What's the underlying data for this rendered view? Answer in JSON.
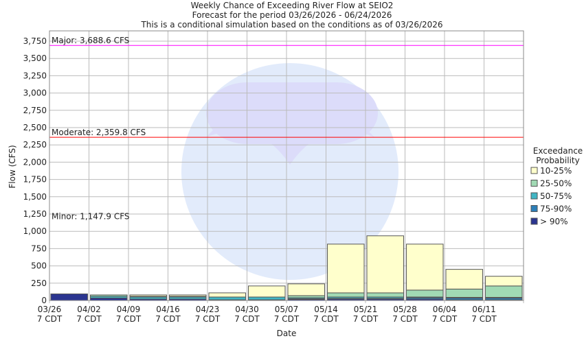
{
  "chart_data": {
    "type": "bar",
    "stacked": true,
    "title": "Weekly Chance of Exceeding River Flow at SEIO2",
    "subtitle": "Forecast for the period 03/26/2026 - 06/24/2026",
    "subtitle2": "This is a conditional simulation based on the conditions as of 03/26/2026",
    "xlabel": "Date",
    "ylabel": "Flow (CFS)",
    "ylim": [
      0,
      3900
    ],
    "yticks": [
      0,
      250,
      500,
      750,
      1000,
      1250,
      1500,
      1750,
      2000,
      2250,
      2500,
      2750,
      3000,
      3250,
      3500,
      3750
    ],
    "ytick_labels": [
      "0",
      "250",
      "500",
      "750",
      "1,000",
      "1,250",
      "1,500",
      "1,750",
      "2,000",
      "2,250",
      "2,500",
      "2,750",
      "3,000",
      "3,250",
      "3,500",
      "3,750"
    ],
    "categories": [
      "03/26",
      "04/02",
      "04/09",
      "04/16",
      "04/23",
      "04/30",
      "05/07",
      "05/14",
      "05/21",
      "05/28",
      "06/04",
      "06/11"
    ],
    "tick_sublabel": "7 CDT",
    "grid": true,
    "legend_title": "Exceedance Probability",
    "legend_position": "right",
    "series": [
      {
        "name": "> 90%",
        "color": "#2b3590",
        "values": [
          95,
          35,
          20,
          20,
          10,
          10,
          15,
          20,
          20,
          20,
          10,
          10
        ]
      },
      {
        "name": "75-90%",
        "color": "#2c7fb8",
        "values": [
          0,
          0,
          0,
          0,
          0,
          0,
          10,
          10,
          10,
          20,
          25,
          25
        ]
      },
      {
        "name": "50-75%",
        "color": "#41b6c4",
        "values": [
          0,
          25,
          30,
          30,
          40,
          40,
          15,
          20,
          20,
          10,
          10,
          10
        ]
      },
      {
        "name": "25-50%",
        "color": "#a1dab4",
        "values": [
          0,
          20,
          10,
          10,
          0,
          0,
          30,
          60,
          60,
          100,
          120,
          165
        ]
      },
      {
        "name": "10-25%",
        "color": "#ffffcc",
        "values": [
          0,
          0,
          20,
          20,
          60,
          160,
          170,
          705,
          825,
          665,
          285,
          140
        ]
      }
    ],
    "thresholds": [
      {
        "label": "Major: 3,688.6 CFS",
        "value": 3688.6,
        "color": "#ff00ff"
      },
      {
        "label": "Moderate: 2,359.8 CFS",
        "value": 2359.8,
        "color": "#ff0000"
      },
      {
        "label": "Minor: 1,147.9 CFS",
        "value": 1147.9,
        "color": ""
      }
    ]
  }
}
